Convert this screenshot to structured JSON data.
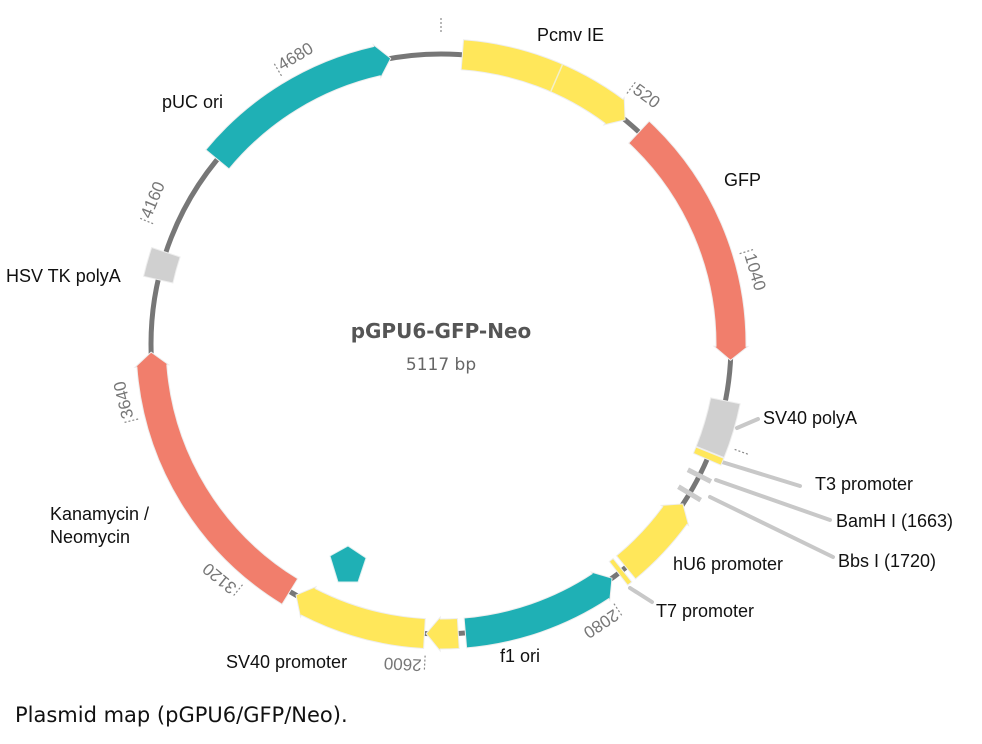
{
  "plasmid": {
    "name": "pGPU6-GFP-Neo",
    "size_label": "5117 bp",
    "length": 5117
  },
  "colors": {
    "backbone": "#777777",
    "promoter": "#ffe75a",
    "origin": "#1fb0b5",
    "gene": "#f17e6c",
    "polyA": "#d0d0d0",
    "site": "#cccccc"
  },
  "features": [
    {
      "label": "Pcmv IE",
      "start": 60,
      "end": 560,
      "direction": "cw",
      "color": "#ffe75a",
      "split": 334
    },
    {
      "label": "GFP",
      "start": 612,
      "end": 1325,
      "direction": "cw",
      "color": "#f17e6c"
    },
    {
      "label": "SV40 polyA",
      "start": 1440,
      "end": 1590,
      "direction": "none",
      "color": "#d0d0d0"
    },
    {
      "label": "T3 promoter",
      "start": 1592,
      "end": 1612,
      "direction": "none",
      "color": "#ffe75a"
    },
    {
      "label": "hU6 promoter",
      "start": 1755,
      "end": 1995,
      "direction": "ccw",
      "color": "#ffe75a"
    },
    {
      "label": "T7 promoter",
      "start": 2008,
      "end": 2022,
      "direction": "none",
      "color": "#ffe75a"
    },
    {
      "label": "f1 ori",
      "start": 2045,
      "end": 2490,
      "direction": "ccw",
      "color": "#1fb0b5"
    },
    {
      "label": "SV40 promoter",
      "start": 2510,
      "end": 2600,
      "direction": "cw",
      "color": "#ffe75a"
    },
    {
      "label": "SV40 promoter",
      "start": 2605,
      "end": 2985,
      "direction": "cw",
      "color": "#ffe75a"
    },
    {
      "label": "Kanamycin / Neomycin",
      "start": 3005,
      "end": 3815,
      "direction": "cw",
      "color": "#f17e6c"
    },
    {
      "label": "HSV TK polyA",
      "start": 4020,
      "end": 4100,
      "direction": "none",
      "color": "#d0d0d0"
    },
    {
      "label": "pUC ori",
      "start": 4400,
      "end": 4975,
      "direction": "cw",
      "color": "#1fb0b5"
    }
  ],
  "sites": [
    {
      "label": "BamH I (1663)",
      "position": 1663
    },
    {
      "label": "Bbs I (1720)",
      "position": 1720
    }
  ],
  "labels": {
    "pcmv": "Pcmv IE",
    "gfp": "GFP",
    "sv40polya": "SV40 polyA",
    "t3": "T3 promoter",
    "bamhi": "BamH I (1663)",
    "bbsi": "Bbs I (1720)",
    "hu6": "hU6 promoter",
    "t7": "T7 promoter",
    "f1": "f1 ori",
    "sv40prom": "SV40 promoter",
    "kan1": "Kanamycin /",
    "kan2": "Neomycin",
    "hsv": "HSV TK polyA",
    "puc": "pUC ori"
  },
  "ticks": [
    {
      "position": 0,
      "label": ""
    },
    {
      "position": 520,
      "label": "520"
    },
    {
      "position": 1040,
      "label": "1040"
    },
    {
      "position": 1560,
      "label": ""
    },
    {
      "position": 2080,
      "label": "2080"
    },
    {
      "position": 2600,
      "label": "2600"
    },
    {
      "position": 3120,
      "label": "3120"
    },
    {
      "position": 3640,
      "label": "3640"
    },
    {
      "position": 4160,
      "label": "4160"
    },
    {
      "position": 4680,
      "label": "4680"
    }
  ],
  "caption": "Plasmid map (pGPU6/GFP/Neo)."
}
